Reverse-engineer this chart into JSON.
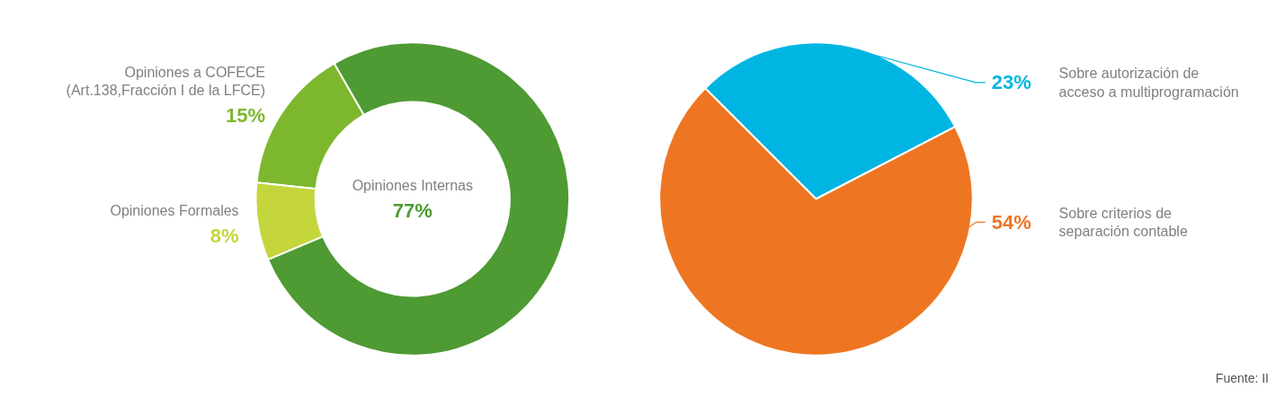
{
  "chart_data": [
    {
      "type": "donut",
      "categories": [
        "Opiniones a COFECE\n(Art.138,Fracción I de la LFCE)",
        "Opiniones Formales",
        "Opiniones Internas"
      ],
      "values": [
        15,
        8,
        77
      ],
      "colors": [
        "#7db72e",
        "#c5d63d",
        "#4e9a33"
      ],
      "value_labels": [
        "15%",
        "8%",
        "77%"
      ]
    },
    {
      "type": "pie",
      "categories": [
        "Sobre autorización de\nacceso a multiprogramación",
        "Sobre criterios de\nseparación contable"
      ],
      "values": [
        23,
        54
      ],
      "colors": [
        "#00b5e2",
        "#ee7622"
      ],
      "value_labels": [
        "23%",
        "54%"
      ],
      "annotations": [
        "Fuente: II"
      ]
    }
  ]
}
